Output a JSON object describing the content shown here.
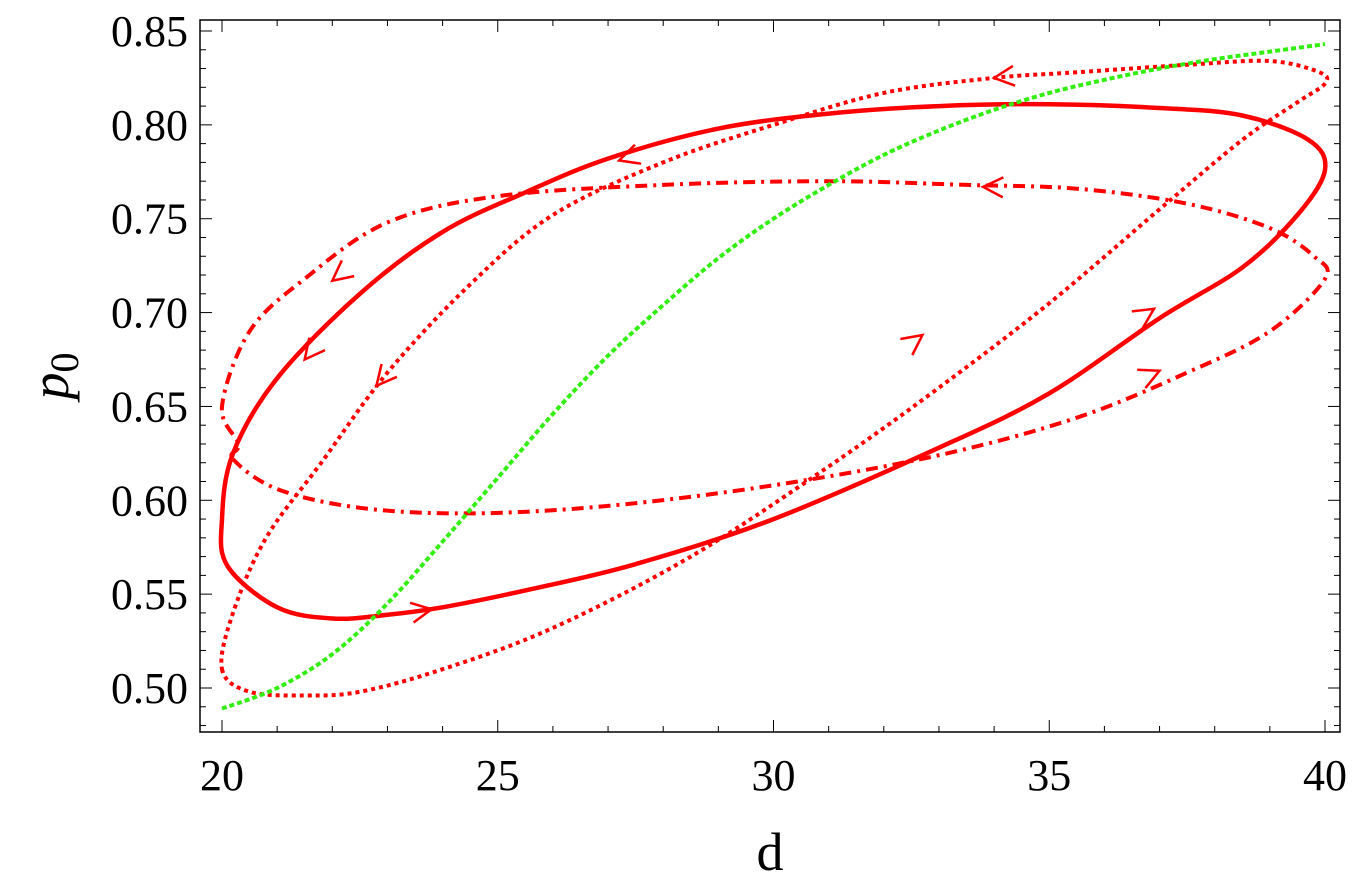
{
  "chart_data": {
    "type": "line",
    "title": "",
    "xlabel": "d",
    "ylabel_base": "p",
    "ylabel_sub": "0",
    "xlim": [
      20,
      40
    ],
    "ylim": [
      0.48,
      0.85
    ],
    "x_ticks": [
      20,
      25,
      30,
      35,
      40
    ],
    "x_tick_labels": [
      "20",
      "25",
      "30",
      "35",
      "40"
    ],
    "y_ticks": [
      0.5,
      0.55,
      0.6,
      0.65,
      0.7,
      0.75,
      0.8,
      0.85
    ],
    "y_tick_labels": [
      "0.50",
      "0.55",
      "0.60",
      "0.65",
      "0.70",
      "0.75",
      "0.80",
      "0.85"
    ],
    "grid": false,
    "legend": "none",
    "series": [
      {
        "style": "solid",
        "color": "#ff0000",
        "closed": true,
        "x": [
          20.1,
          21.0,
          22.0,
          23.0,
          24.0,
          25.5,
          27.5,
          30.0,
          33.0,
          35.0,
          37.0,
          38.5,
          39.5,
          40.0,
          39.7,
          38.5,
          37.0,
          35.0,
          33.0,
          31.0,
          29.0,
          27.0,
          25.5,
          24.0,
          22.5,
          21.0,
          20.2,
          20.0
        ],
        "y": [
          0.565,
          0.543,
          0.537,
          0.539,
          0.543,
          0.552,
          0.566,
          0.59,
          0.628,
          0.657,
          0.697,
          0.724,
          0.752,
          0.776,
          0.792,
          0.805,
          0.809,
          0.811,
          0.81,
          0.806,
          0.798,
          0.782,
          0.764,
          0.743,
          0.71,
          0.665,
          0.625,
          0.59
        ],
        "arrows": [
          {
            "x": 23.8,
            "y": 0.542,
            "dir": "forward"
          },
          {
            "x": 36.9,
            "y": 0.702,
            "dir": "forward"
          },
          {
            "x": 27.2,
            "y": 0.781,
            "dir": "forward"
          },
          {
            "x": 21.5,
            "y": 0.675,
            "dir": "forward"
          }
        ]
      },
      {
        "style": "dashdot",
        "color": "#ff0000",
        "closed": true,
        "x": [
          20.2,
          21.0,
          22.5,
          24.5,
          27.0,
          30.0,
          33.0,
          35.5,
          37.5,
          39.0,
          40.0,
          39.8,
          39.0,
          37.5,
          35.5,
          33.5,
          31.0,
          28.0,
          25.0,
          23.0,
          21.5,
          20.5,
          20.0,
          20.3
        ],
        "y": [
          0.622,
          0.606,
          0.596,
          0.593,
          0.597,
          0.608,
          0.624,
          0.644,
          0.668,
          0.69,
          0.718,
          0.73,
          0.745,
          0.758,
          0.766,
          0.768,
          0.77,
          0.768,
          0.762,
          0.748,
          0.718,
          0.69,
          0.65,
          0.63
        ],
        "arrows": [
          {
            "x": 37.0,
            "y": 0.669,
            "dir": "forward"
          },
          {
            "x": 33.8,
            "y": 0.767,
            "dir": "forward"
          },
          {
            "x": 22.0,
            "y": 0.717,
            "dir": "forward"
          }
        ]
      },
      {
        "style": "dotted",
        "color": "#ff0000",
        "closed": true,
        "x": [
          20.0,
          20.5,
          21.5,
          22.5,
          24.0,
          26.0,
          28.5,
          31.0,
          33.0,
          35.0,
          37.0,
          38.5,
          39.5,
          40.0,
          39.9,
          39.0,
          37.5,
          35.5,
          34.0,
          32.0,
          30.0,
          28.0,
          26.0,
          24.5,
          23.0,
          21.8,
          20.8,
          20.2
        ],
        "y": [
          0.51,
          0.498,
          0.496,
          0.498,
          0.51,
          0.532,
          0.57,
          0.618,
          0.66,
          0.705,
          0.755,
          0.792,
          0.812,
          0.822,
          0.828,
          0.834,
          0.832,
          0.828,
          0.825,
          0.817,
          0.8,
          0.78,
          0.752,
          0.715,
          0.668,
          0.62,
          0.58,
          0.54
        ],
        "arrows": [
          {
            "x": 32.7,
            "y": 0.688,
            "dir": "forward"
          },
          {
            "x": 34.0,
            "y": 0.825,
            "dir": "forward"
          },
          {
            "x": 22.8,
            "y": 0.661,
            "dir": "forward"
          }
        ]
      },
      {
        "style": "dashed",
        "color": "#33ee11",
        "closed": false,
        "x": [
          20.0,
          21.0,
          22.0,
          23.0,
          24.0,
          25.0,
          26.0,
          27.0,
          28.0,
          29.0,
          30.0,
          31.0,
          32.0,
          33.0,
          34.0,
          35.0,
          36.0,
          37.0,
          38.0,
          39.0,
          40.0
        ],
        "y": [
          0.489,
          0.5,
          0.518,
          0.545,
          0.578,
          0.612,
          0.646,
          0.677,
          0.704,
          0.729,
          0.75,
          0.768,
          0.784,
          0.797,
          0.808,
          0.817,
          0.824,
          0.83,
          0.835,
          0.839,
          0.843
        ],
        "arrows": []
      }
    ]
  }
}
